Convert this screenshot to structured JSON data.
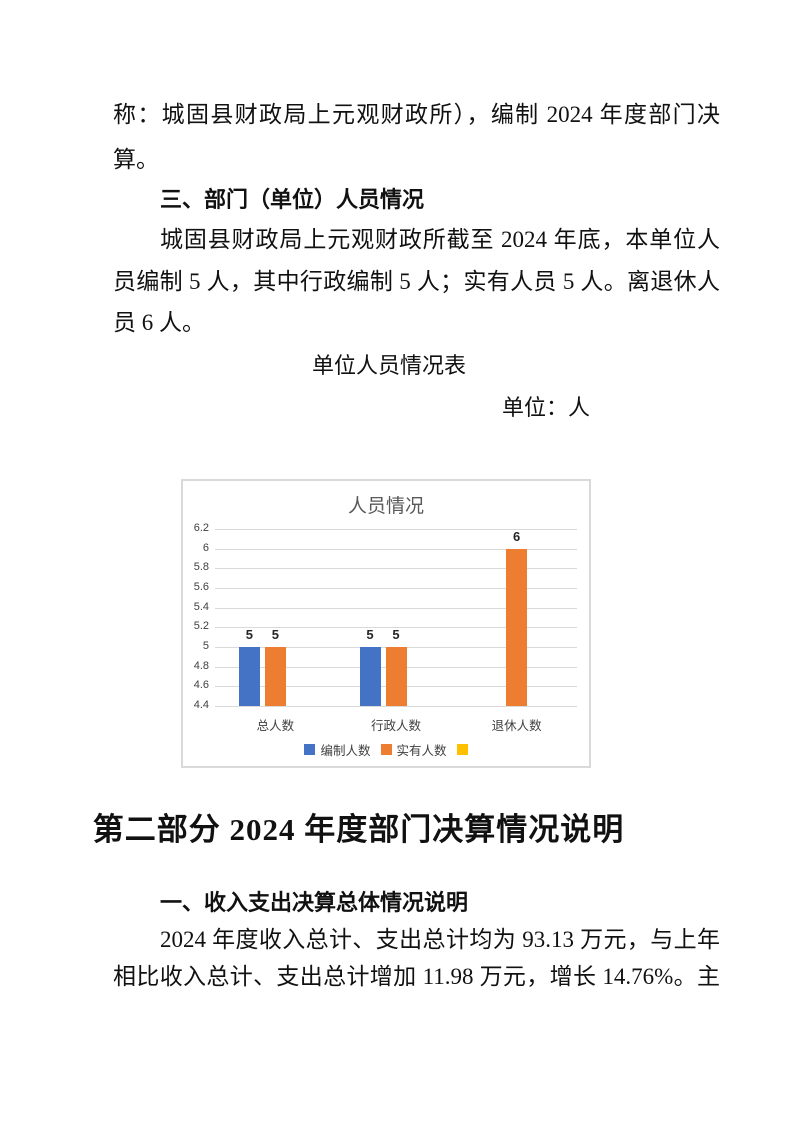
{
  "page": {
    "lines": {
      "l1": "称：城固县财政局上元观财政所），编制 2024 年度部门决",
      "l2": "算。",
      "h3": "三、部门（单位）人员情况",
      "p1": "城固县财政局上元观财政所截至 2024 年底，本单位人",
      "p2": "员编制 5 人，其中行政编制 5 人；实有人员 5 人。离退休人",
      "p3": "员 6 人。",
      "table_title": "单位人员情况表",
      "unit_label": "单位：人",
      "part2_heading": "第二部分 2024 年度部门决算情况说明",
      "s1_heading": "一、收入支出决算总体情况说明",
      "s1_p1": "2024 年度收入总计、支出总计均为 93.13 万元，与上年",
      "s1_p2": "相比收入总计、支出总计增加 11.98 万元，增长 14.76%。主"
    }
  },
  "chart_data": {
    "type": "bar",
    "title": "人员情况",
    "categories": [
      "总人数",
      "行政人数",
      "退休人数"
    ],
    "series": [
      {
        "name": "编制人数",
        "color": "#4472C4",
        "values": [
          5,
          5,
          null
        ]
      },
      {
        "name": "实有人数",
        "color": "#ED7D31",
        "values": [
          5,
          5,
          6
        ]
      },
      {
        "name": "",
        "color": "#FFC000",
        "values": [
          null,
          null,
          null
        ]
      }
    ],
    "ylim": [
      4.4,
      6.2
    ],
    "ytick_step": 0.2,
    "yticks": [
      "6.2",
      "6",
      "5.8",
      "5.6",
      "5.4",
      "5.2",
      "5",
      "4.8",
      "4.6",
      "4.4"
    ],
    "grid": true,
    "data_labels": true,
    "legend_position": "bottom",
    "colors": {
      "grid": "#d9d9d9",
      "title": "#595959",
      "axis_text": "#404040"
    }
  }
}
